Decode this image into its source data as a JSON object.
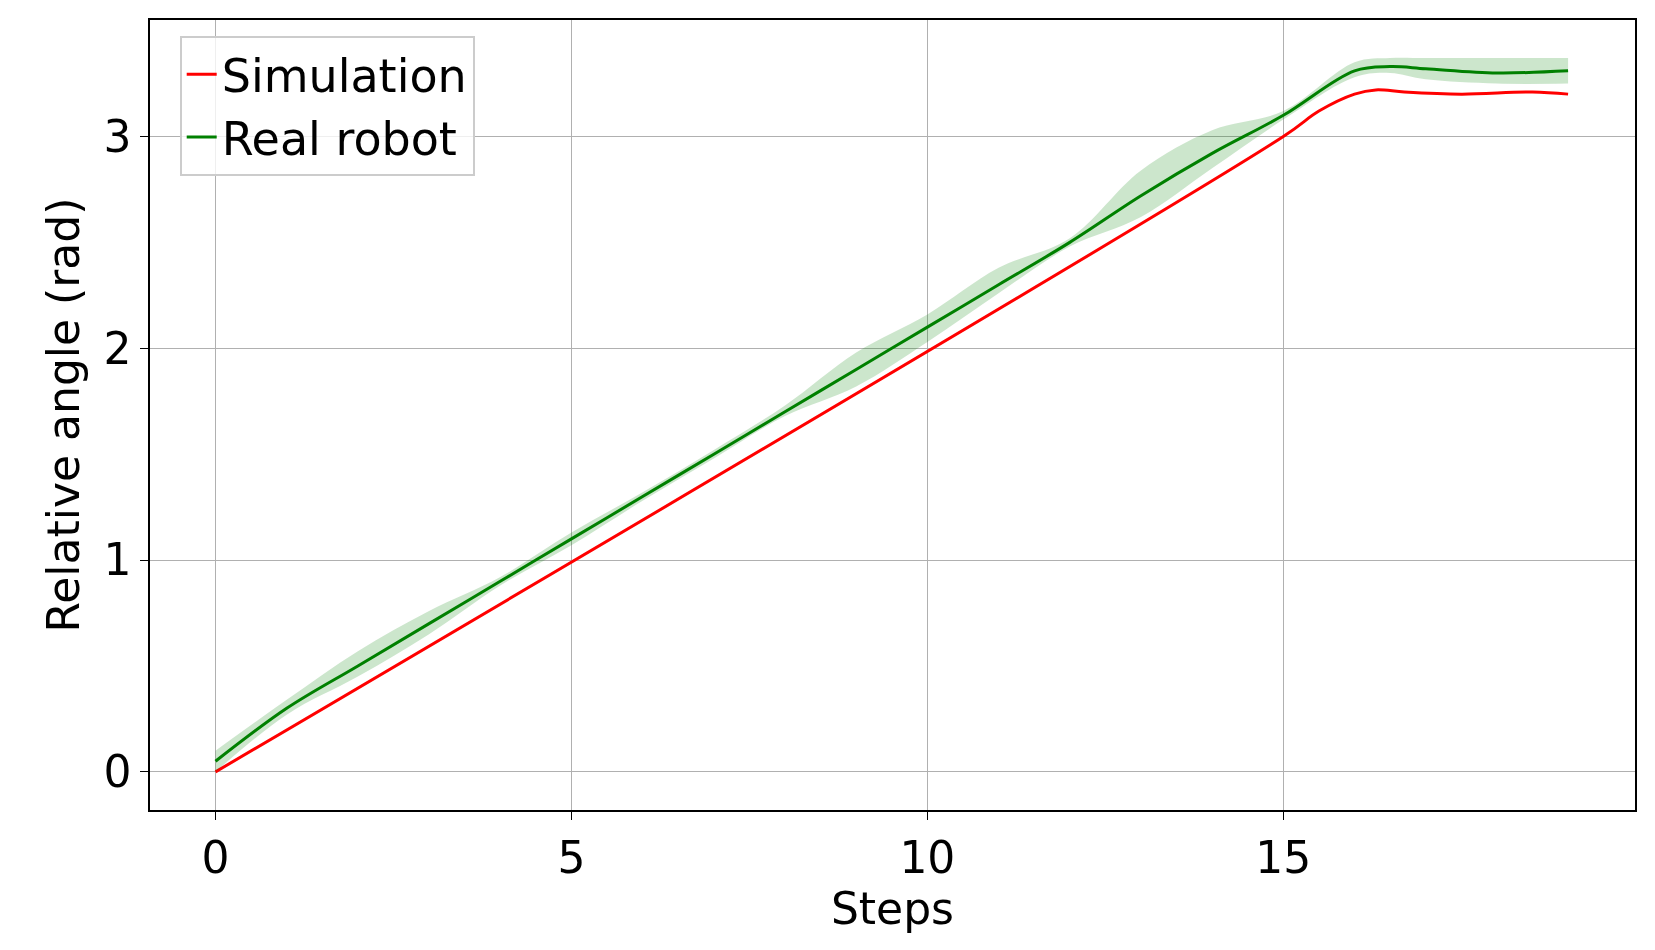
{
  "chart_data": {
    "type": "line",
    "xlabel": "Steps",
    "ylabel": "Relative angle (rad)",
    "xlim": [
      -0.92,
      19.94
    ],
    "ylim": [
      -0.18,
      3.55
    ],
    "xticks": [
      0,
      5,
      10,
      15
    ],
    "yticks": [
      0,
      1,
      2,
      3
    ],
    "grid": true,
    "legend": "top left",
    "marker": "none",
    "line_style": "solid",
    "series": [
      {
        "name": "Simulation",
        "color": "#ff0000",
        "x": [
          0,
          15,
          15.5,
          16,
          16.3,
          16.7,
          17.5,
          18.5,
          19
        ],
        "values": [
          0,
          3.0,
          3.12,
          3.2,
          3.22,
          3.21,
          3.2,
          3.21,
          3.2
        ]
      },
      {
        "name": "Real robot",
        "color": "#008000",
        "x": [
          0,
          1,
          2,
          3,
          4,
          5,
          6,
          7,
          8,
          9,
          10,
          11,
          12,
          13,
          14,
          15,
          16,
          16.5,
          17,
          18,
          19
        ],
        "values": [
          0.05,
          0.3,
          0.5,
          0.7,
          0.9,
          1.1,
          1.3,
          1.5,
          1.7,
          1.9,
          2.1,
          2.3,
          2.5,
          2.72,
          2.92,
          3.1,
          3.31,
          3.33,
          3.32,
          3.3,
          3.31
        ],
        "lower": [
          0.0,
          0.27,
          0.45,
          0.65,
          0.88,
          1.07,
          1.28,
          1.48,
          1.68,
          1.82,
          2.03,
          2.26,
          2.48,
          2.62,
          2.85,
          3.08,
          3.28,
          3.3,
          3.27,
          3.25,
          3.25
        ],
        "upper": [
          0.1,
          0.34,
          0.57,
          0.76,
          0.92,
          1.13,
          1.32,
          1.52,
          1.73,
          1.98,
          2.16,
          2.38,
          2.52,
          2.84,
          3.03,
          3.12,
          3.35,
          3.37,
          3.37,
          3.37,
          3.37
        ]
      }
    ]
  }
}
